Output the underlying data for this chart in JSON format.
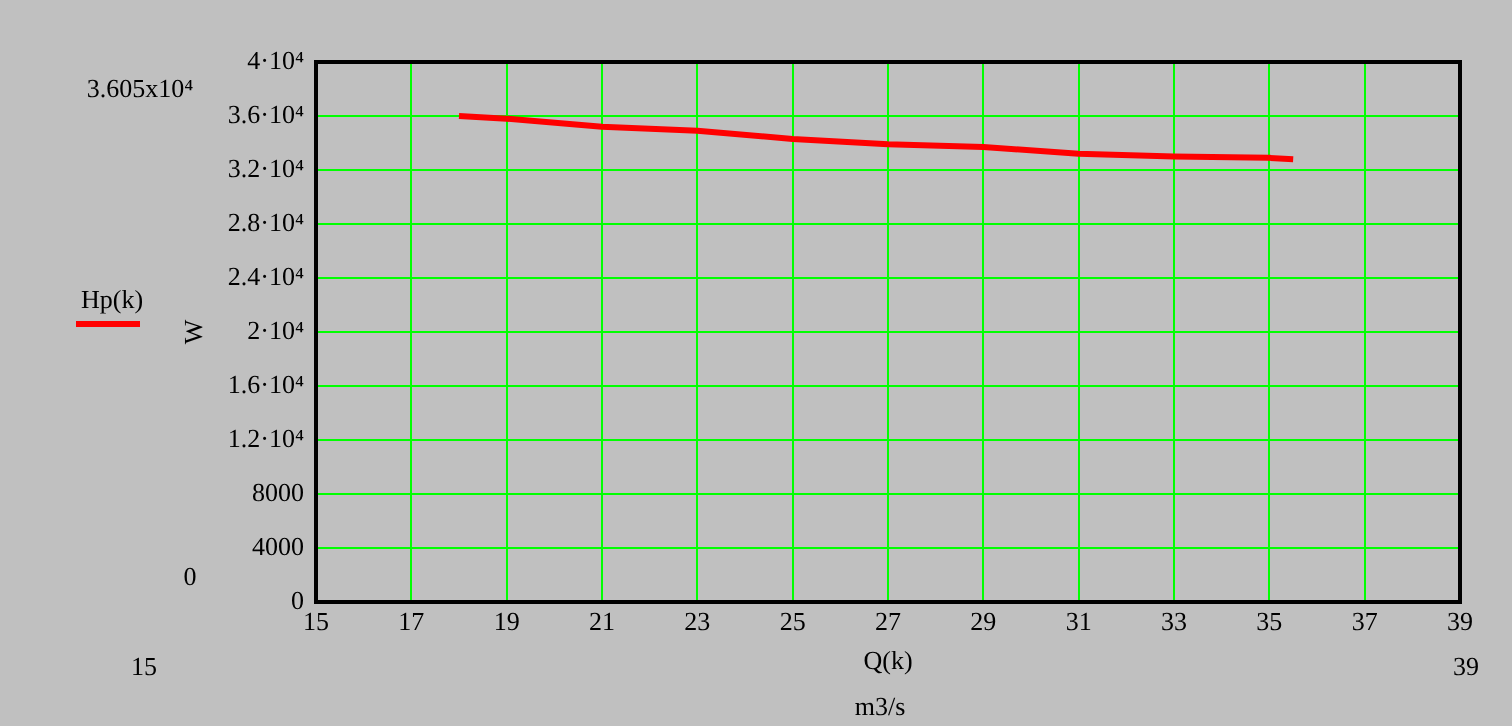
{
  "chart_data": {
    "type": "line",
    "xlabel": "Q(k)",
    "ylabel": "W",
    "x": [
      18,
      19,
      21,
      23,
      25,
      27,
      29,
      31,
      33,
      35,
      35.5
    ],
    "series": [
      {
        "name": "Hp(k)",
        "color": "#ff0000",
        "values": [
          36000,
          35800,
          35200,
          34900,
          34300,
          33900,
          33700,
          33200,
          33000,
          32900,
          32800
        ]
      }
    ],
    "xlim": [
      15,
      39
    ],
    "xticks": [
      15,
      17,
      19,
      21,
      23,
      25,
      27,
      29,
      31,
      33,
      35,
      37,
      39
    ],
    "ylim": [
      0,
      40000
    ],
    "yticks": [
      0,
      4000,
      8000,
      {
        "value": 12000,
        "label": "1.2·10⁴"
      },
      {
        "value": 16000,
        "label": "1.6·10⁴"
      },
      {
        "value": 20000,
        "label": "2·10⁴"
      },
      {
        "value": 24000,
        "label": "2.4·10⁴"
      },
      {
        "value": 28000,
        "label": "2.8·10⁴"
      },
      {
        "value": 32000,
        "label": "3.2·10⁴"
      },
      {
        "value": 36000,
        "label": "3.6·10⁴"
      },
      {
        "value": 40000,
        "label": "4·10⁴"
      }
    ],
    "grid": true,
    "legend": "left",
    "marker": "none",
    "line_style": "solid",
    "annotations": [
      "3.605x10⁴",
      "0",
      "15",
      "39",
      "m3/s"
    ]
  }
}
